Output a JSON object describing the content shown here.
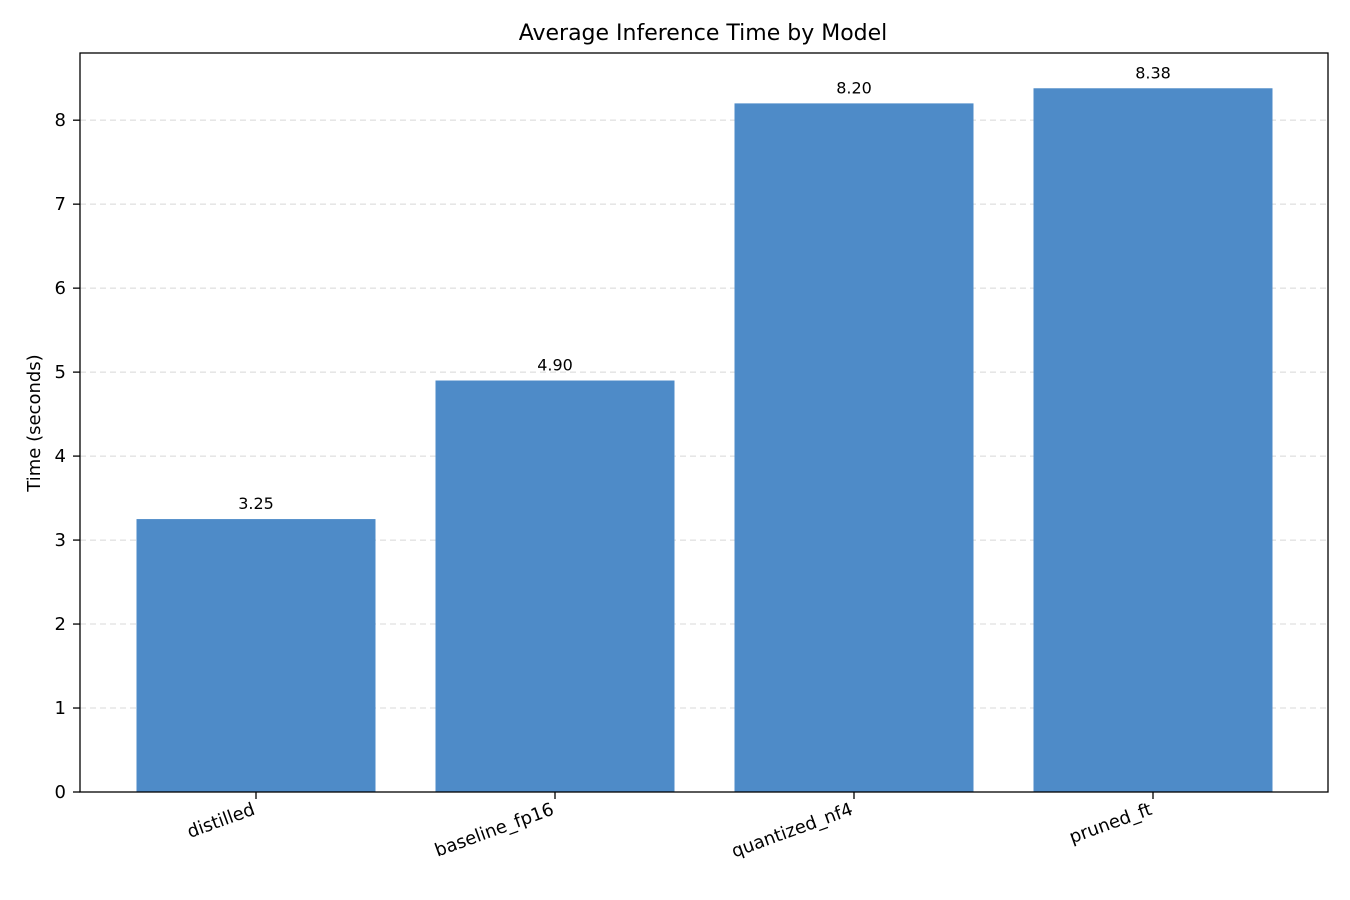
{
  "chart_data": {
    "type": "bar",
    "title": "Average Inference Time by Model",
    "xlabel": "",
    "ylabel": "Time (seconds)",
    "categories": [
      "distilled",
      "baseline_fp16",
      "quantized_nf4",
      "pruned_ft"
    ],
    "values": [
      3.25,
      4.9,
      8.2,
      8.38
    ],
    "value_labels": [
      "3.25",
      "4.90",
      "8.20",
      "8.38"
    ],
    "ylim": [
      0,
      8.8
    ],
    "yticks": [
      0,
      1,
      2,
      3,
      4,
      5,
      6,
      7,
      8
    ],
    "grid": "y-dashed",
    "bar_color": "#4e8bc8",
    "legend": "none"
  }
}
